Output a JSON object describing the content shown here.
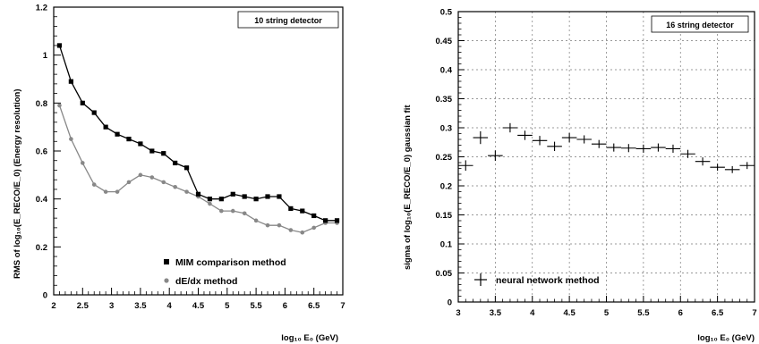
{
  "chart_data": [
    {
      "type": "line",
      "title": "10 string detector",
      "xlabel": "log₁₀ E₀ (GeV)",
      "ylabel": "RMS of log₁₀(E_RECO/E_0) (Energy resolution)",
      "xlim": [
        2,
        7
      ],
      "ylim": [
        0,
        1.2
      ],
      "xticks": [
        2,
        2.5,
        3,
        3.5,
        4,
        4.5,
        5,
        5.5,
        6,
        6.5,
        7
      ],
      "xtick_labels": [
        "2",
        "2.5",
        "3",
        "3.5",
        "4",
        "4.5",
        "5",
        "5.5",
        "6",
        "6.5",
        "7"
      ],
      "yticks": [
        0,
        0.2,
        0.4,
        0.6,
        0.8,
        1,
        1.2
      ],
      "ytick_labels": [
        "0",
        "0.2",
        "0.4",
        "0.6",
        "0.8",
        "1",
        "1.2"
      ],
      "legend_position": "bottom-right",
      "grid": false,
      "series": [
        {
          "name": "MIM comparison method",
          "color": "#000000",
          "marker": "square",
          "x": [
            2.1,
            2.3,
            2.5,
            2.7,
            2.9,
            3.1,
            3.3,
            3.5,
            3.7,
            3.9,
            4.1,
            4.3,
            4.5,
            4.7,
            4.9,
            5.1,
            5.3,
            5.5,
            5.7,
            5.9,
            6.1,
            6.3,
            6.5,
            6.7,
            6.9
          ],
          "y": [
            1.04,
            0.89,
            0.8,
            0.76,
            0.7,
            0.67,
            0.65,
            0.63,
            0.6,
            0.59,
            0.55,
            0.53,
            0.42,
            0.4,
            0.4,
            0.42,
            0.41,
            0.4,
            0.41,
            0.41,
            0.36,
            0.35,
            0.33,
            0.31,
            0.31
          ]
        },
        {
          "name": "dE/dx method",
          "color": "#888888",
          "marker": "circle",
          "x": [
            2.1,
            2.3,
            2.5,
            2.7,
            2.9,
            3.1,
            3.3,
            3.5,
            3.7,
            3.9,
            4.1,
            4.3,
            4.5,
            4.7,
            4.9,
            5.1,
            5.3,
            5.5,
            5.7,
            5.9,
            6.1,
            6.3,
            6.5,
            6.7,
            6.9
          ],
          "y": [
            0.79,
            0.65,
            0.55,
            0.46,
            0.43,
            0.43,
            0.47,
            0.5,
            0.49,
            0.47,
            0.45,
            0.43,
            0.41,
            0.38,
            0.35,
            0.35,
            0.34,
            0.31,
            0.29,
            0.29,
            0.27,
            0.26,
            0.28,
            0.3,
            0.3
          ]
        }
      ]
    },
    {
      "type": "scatter",
      "title": "16 string detector",
      "xlabel": "log₁₀ E₀ (GeV)",
      "ylabel": "sigma of log₁₀(E_RECO/E_0) gaussian fit",
      "xlim": [
        3,
        7
      ],
      "ylim": [
        0,
        0.5
      ],
      "xticks": [
        3,
        3.5,
        4,
        4.5,
        5,
        5.5,
        6,
        6.5,
        7
      ],
      "xtick_labels": [
        "3",
        "3.5",
        "4",
        "4.5",
        "5",
        "5.5",
        "6",
        "6.5",
        "7"
      ],
      "yticks": [
        0,
        0.05,
        0.1,
        0.15,
        0.2,
        0.25,
        0.3,
        0.35,
        0.4,
        0.45,
        0.5
      ],
      "ytick_labels": [
        "0",
        "0.05",
        "0.1",
        "0.15",
        "0.2",
        "0.25",
        "0.3",
        "0.35",
        "0.4",
        "0.45",
        "0.5"
      ],
      "legend_position": "bottom-left",
      "grid": true,
      "series": [
        {
          "name": "neural network method",
          "color": "#000000",
          "marker": "errorbar-cross",
          "x": [
            3.1,
            3.3,
            3.5,
            3.7,
            3.9,
            4.1,
            4.3,
            4.5,
            4.7,
            4.9,
            5.1,
            5.3,
            5.5,
            5.7,
            5.9,
            6.1,
            6.3,
            6.5,
            6.7,
            6.9
          ],
          "y": [
            0.235,
            0.283,
            0.252,
            0.3,
            0.287,
            0.278,
            0.268,
            0.283,
            0.28,
            0.272,
            0.266,
            0.265,
            0.264,
            0.266,
            0.264,
            0.255,
            0.242,
            0.232,
            0.228,
            0.235
          ],
          "yerr": [
            0.009,
            0.011,
            0.009,
            0.008,
            0.008,
            0.008,
            0.008,
            0.008,
            0.007,
            0.007,
            0.007,
            0.007,
            0.007,
            0.007,
            0.007,
            0.007,
            0.007,
            0.006,
            0.006,
            0.006
          ]
        }
      ]
    }
  ]
}
